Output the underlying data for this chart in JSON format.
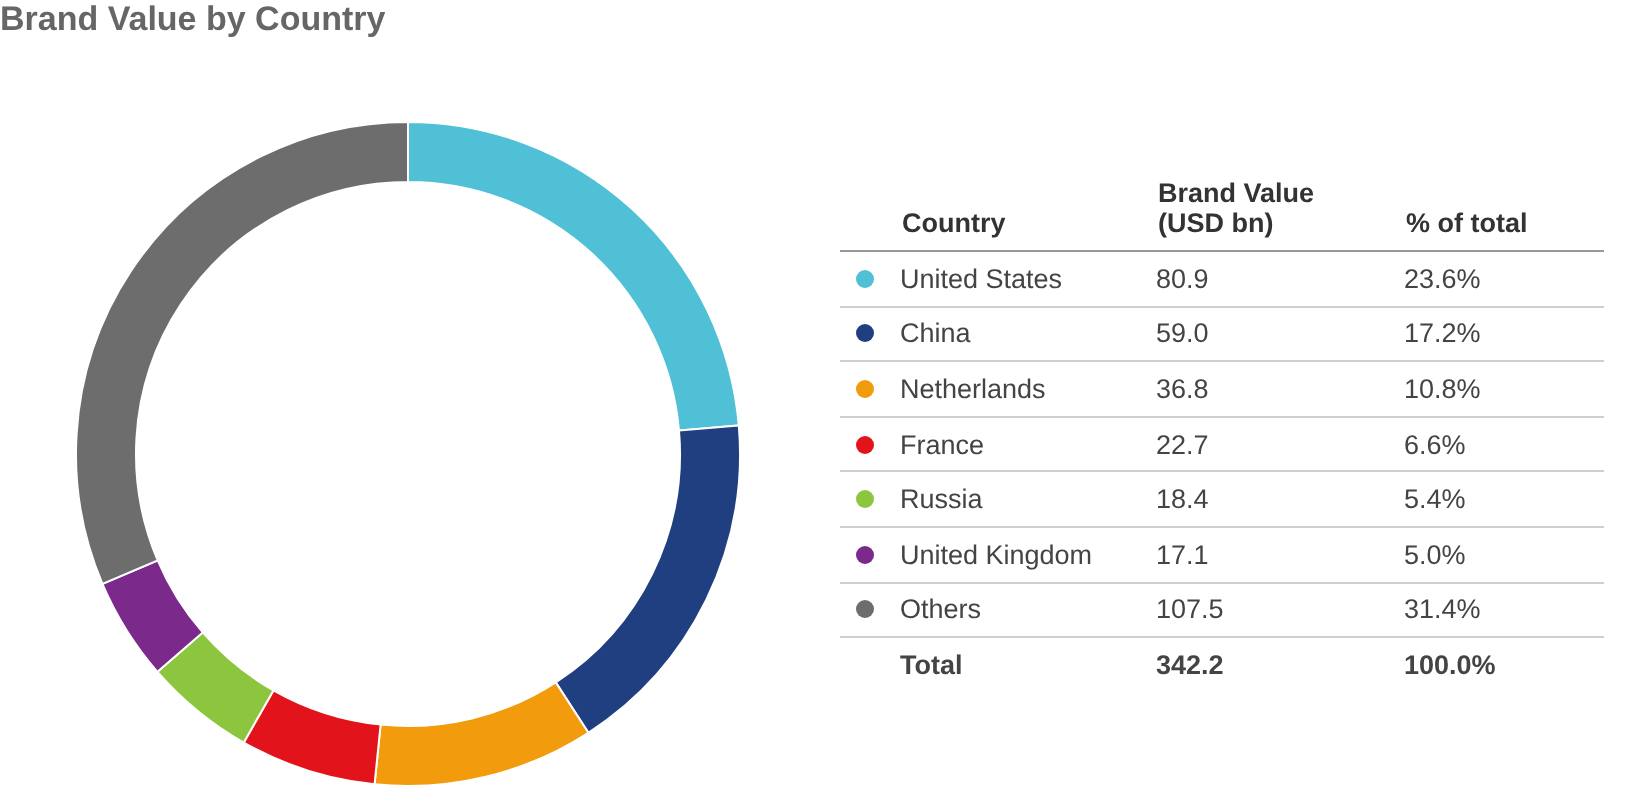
{
  "chart_data": {
    "type": "donut",
    "title": "Brand Value by Country",
    "categories": [
      "United States",
      "China",
      "Netherlands",
      "France",
      "Russia",
      "United Kingdom",
      "Others"
    ],
    "values": [
      80.9,
      59.0,
      36.8,
      22.7,
      18.4,
      17.1,
      107.5
    ],
    "colors": [
      "#4fc0d6",
      "#1f3f80",
      "#f29b0c",
      "#e3131b",
      "#8cc63f",
      "#7b2a8c",
      "#6d6d6d"
    ],
    "value_labels": [
      "80.9",
      "59.0",
      "36.8",
      "22.7",
      "18.4",
      "17.1",
      "107.5"
    ],
    "legend": "right",
    "annotations": [
      "Country",
      "Brand Value (USD bn)",
      "% of total",
      "23.6%",
      "17.2%",
      "10.8%",
      "6.6%",
      "5.4%",
      "5.0%",
      "31.4%",
      "Total",
      "342.2",
      "100.0%"
    ]
  }
}
